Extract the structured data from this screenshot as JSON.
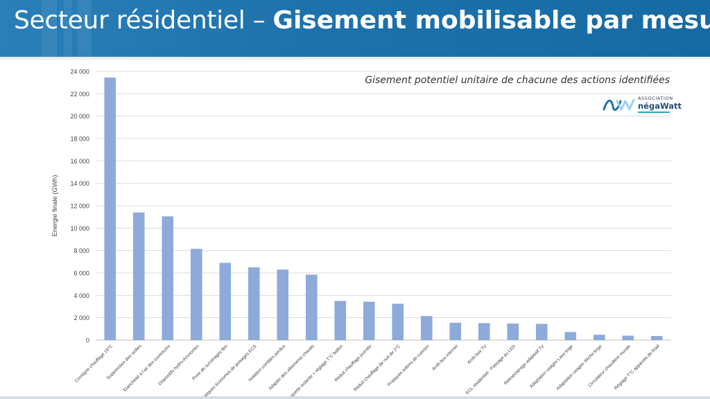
{
  "header": {
    "title_light": "Secteur résidentiel",
    "title_sep": " – ",
    "title_bold": "Gisement mobilisable par mesure"
  },
  "logo": {
    "association": "ASSOCIATION",
    "name": "négaWatt"
  },
  "colors": {
    "banner": "#1f73ad",
    "bar": "#8eaadb",
    "grid": "#d9d9d9",
    "text": "#404040"
  },
  "chart_data": {
    "type": "bar",
    "title": "Gisement potentiel unitaire de chacune des actions identifiées",
    "xlabel": "",
    "ylabel": "Energie finale (GWh)",
    "ylim": [
      0,
      24000
    ],
    "yticks": [
      0,
      2000,
      4000,
      6000,
      8000,
      10000,
      12000,
      14000,
      16000,
      18000,
      20000,
      22000,
      24000
    ],
    "ytick_labels": [
      "0",
      "2 000",
      "4 000",
      "6 000",
      "8 000",
      "10 000",
      "12 000",
      "14 000",
      "16 000",
      "18 000",
      "20 000",
      "22 000",
      "24 000"
    ],
    "grid": true,
    "legend": "none",
    "categories": [
      "Consigne chauffage 19°C",
      "Suppression des veilles",
      "Etanchéité à l'air des ouvertures",
      "Dispositifs hydro-économes",
      "Pose de survitrages film",
      "Pratiques économes de puisages ECS",
      "Isolation combles perdus",
      "Adapter des vêtements chauds",
      "Jaquette isolante + réglage T°C ballon",
      "Réduit chauffage journée",
      "Réduit chauffage de nuit de 2°C",
      "Pratiques sobres de cuisson",
      "Arrêt box internet",
      "Arrêt box TV",
      "ECL résidentiel - Passage au LED",
      "Rétroéclairage adaptatif TV",
      "Adaptation usages Lave linge",
      "Adaptation usages Sèche linge",
      "Circulateur chaudière murale",
      "Réglage T°C appareils de froid"
    ],
    "values": [
      23450,
      11400,
      11050,
      8150,
      6900,
      6500,
      6300,
      5850,
      3500,
      3430,
      3250,
      2150,
      1550,
      1520,
      1480,
      1450,
      720,
      480,
      400,
      370
    ]
  }
}
